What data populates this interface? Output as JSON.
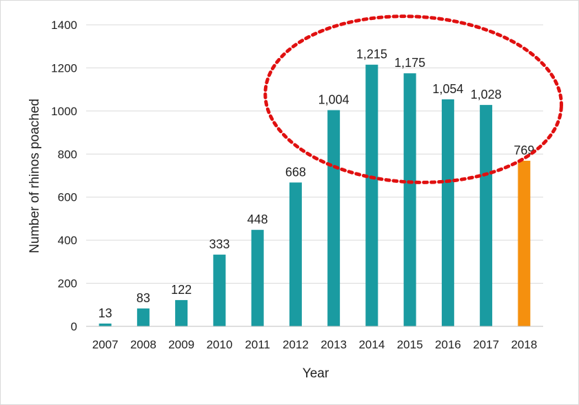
{
  "chart_data": {
    "type": "bar",
    "xlabel": "Year",
    "ylabel": "Number  of rhinos poached",
    "ylim": [
      0,
      1400
    ],
    "yticks": [
      0,
      200,
      400,
      600,
      800,
      1000,
      1200,
      1400
    ],
    "grid": true,
    "categories": [
      "2007",
      "2008",
      "2009",
      "2010",
      "2011",
      "2012",
      "2013",
      "2014",
      "2015",
      "2016",
      "2017",
      "2018"
    ],
    "values": [
      13,
      83,
      122,
      333,
      448,
      668,
      1004,
      1215,
      1175,
      1054,
      1028,
      769
    ],
    "data_labels": [
      "13",
      "83",
      "122",
      "333",
      "448",
      "668",
      "1,004",
      "1,215",
      "1,175",
      "1,054",
      "1,028",
      "769"
    ],
    "colors": {
      "bar": "#1a9ba1",
      "highlight_bar": "#f5900e",
      "annotation_ellipse": "#e01010",
      "grid": "#d9d9d9"
    },
    "highlight_category": "2018",
    "annotation": {
      "shape": "dotted-ellipse",
      "encloses_categories": [
        "2013",
        "2014",
        "2015",
        "2016",
        "2017"
      ]
    }
  }
}
